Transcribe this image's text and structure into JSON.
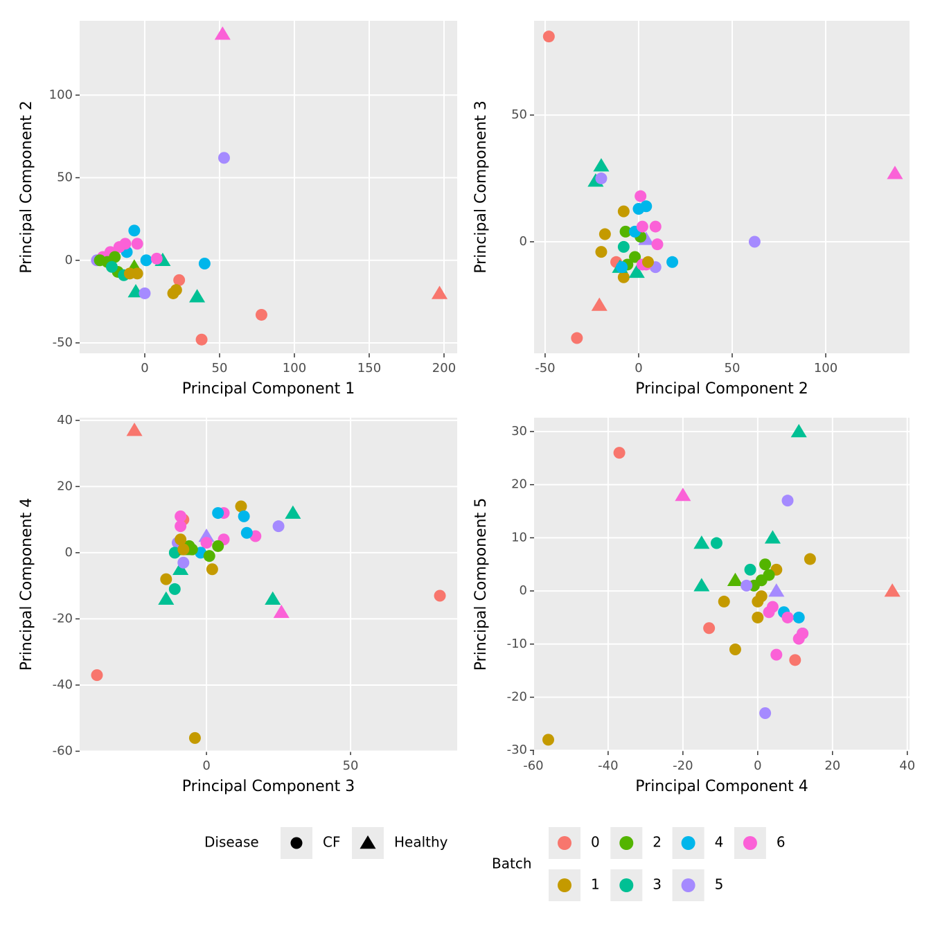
{
  "chart_data": [
    {
      "type": "scatter",
      "xlabel": "Principal Component 1",
      "ylabel": "Principal Component 2",
      "xlim": [
        -43.5,
        208.8
      ],
      "ylim": [
        -56.3,
        145
      ],
      "xticks": [
        0,
        50,
        100,
        150,
        200
      ],
      "yticks": [
        -50,
        0,
        50,
        100
      ],
      "grid": true,
      "x": [
        52,
        53,
        197,
        78,
        38,
        23,
        19,
        21,
        40,
        1,
        -7,
        -12,
        12,
        35,
        -6,
        -7,
        0,
        -5,
        -13,
        -17,
        -23,
        -28,
        8,
        -32,
        -30,
        -25,
        -20,
        -18,
        -22,
        -14,
        -10,
        -5
      ],
      "y": [
        137,
        62,
        -20,
        -33,
        -48,
        -12,
        -20,
        -18,
        -2,
        0,
        18,
        5,
        0,
        -22,
        -19,
        -4,
        -20,
        10,
        10,
        8,
        5,
        2,
        1,
        0,
        0,
        -1,
        2,
        -7,
        -4,
        -9,
        -8,
        -8
      ],
      "batch": [
        "6",
        "5",
        "0",
        "0",
        "0",
        "0",
        "1",
        "1",
        "4",
        "4",
        "4",
        "4",
        "3",
        "3",
        "3",
        "2",
        "5",
        "6",
        "6",
        "6",
        "6",
        "6",
        "6",
        "5",
        "2",
        "2",
        "2",
        "2",
        "3",
        "3",
        "1",
        "1"
      ],
      "disease": [
        "Healthy",
        "CF",
        "Healthy",
        "CF",
        "CF",
        "CF",
        "CF",
        "CF",
        "CF",
        "CF",
        "CF",
        "CF",
        "Healthy",
        "Healthy",
        "Healthy",
        "Healthy",
        "CF",
        "CF",
        "CF",
        "CF",
        "CF",
        "CF",
        "CF",
        "CF",
        "CF",
        "CF",
        "CF",
        "CF",
        "CF",
        "CF",
        "CF",
        "CF"
      ]
    },
    {
      "type": "scatter",
      "xlabel": "Principal Component 2",
      "ylabel": "Principal Component 3",
      "xlim": [
        -55.9,
        144.8
      ],
      "ylim": [
        -44,
        87.2
      ],
      "xticks": [
        -50,
        0,
        50,
        100
      ],
      "yticks": [
        0,
        50
      ],
      "grid": true,
      "x": [
        -48,
        -33,
        -12,
        -20,
        -23,
        -20,
        62,
        9,
        4,
        -21,
        137,
        -8,
        -18,
        -20,
        -8,
        -7,
        1,
        -2,
        -6,
        -8,
        -1,
        -10,
        0,
        4,
        -2,
        18,
        -9,
        1,
        2,
        9,
        10,
        4,
        2,
        5
      ],
      "y": [
        81,
        -38,
        -8,
        30,
        24,
        25,
        0,
        -10,
        1,
        -25,
        27,
        12,
        3,
        -4,
        -14,
        4,
        2,
        -6,
        -9,
        -2,
        -12,
        -10,
        13,
        14,
        4,
        -8,
        -10,
        18,
        6,
        6,
        -1,
        -9,
        -9,
        -8
      ],
      "batch": [
        "0",
        "0",
        "0",
        "3",
        "3",
        "5",
        "5",
        "5",
        "5",
        "0",
        "6",
        "1",
        "1",
        "1",
        "1",
        "2",
        "2",
        "2",
        "2",
        "3",
        "3",
        "3",
        "4",
        "4",
        "4",
        "4",
        "4",
        "6",
        "6",
        "6",
        "6",
        "6",
        "6",
        "1"
      ],
      "disease": [
        "CF",
        "CF",
        "CF",
        "Healthy",
        "Healthy",
        "CF",
        "CF",
        "CF",
        "Healthy",
        "Healthy",
        "Healthy",
        "CF",
        "CF",
        "CF",
        "CF",
        "CF",
        "CF",
        "CF",
        "CF",
        "CF",
        "Healthy",
        "Healthy",
        "CF",
        "CF",
        "CF",
        "CF",
        "CF",
        "CF",
        "CF",
        "CF",
        "CF",
        "CF",
        "CF",
        "CF"
      ]
    },
    {
      "type": "scatter",
      "xlabel": "Principal Component 3",
      "ylabel": "Principal Component 4",
      "xlim": [
        -44,
        87
      ],
      "ylim": [
        -59.9,
        40.8
      ],
      "xticks": [
        0,
        50
      ],
      "yticks": [
        -60,
        -40,
        -20,
        0,
        20,
        40
      ],
      "grid": true,
      "x": [
        -25,
        -38,
        81,
        -8,
        -4,
        -14,
        12,
        2,
        -14,
        -9,
        23,
        30,
        26,
        25,
        -10,
        -8,
        0,
        -9,
        -9,
        6,
        17,
        6,
        0,
        4,
        13,
        14,
        -2,
        -11,
        -11,
        -6,
        -5,
        1,
        4,
        -7,
        -9,
        -8
      ],
      "y": [
        37,
        -37,
        -13,
        10,
        -56,
        -8,
        14,
        -5,
        -14,
        -5,
        -14,
        12,
        -18,
        8,
        3,
        -3,
        5,
        11,
        8,
        12,
        5,
        4,
        3,
        12,
        11,
        6,
        0,
        0,
        -11,
        2,
        1,
        -1,
        2,
        1,
        4,
        1
      ],
      "batch": [
        "0",
        "0",
        "0",
        "0",
        "1",
        "1",
        "1",
        "1",
        "3",
        "3",
        "3",
        "3",
        "6",
        "5",
        "5",
        "5",
        "5",
        "6",
        "6",
        "6",
        "6",
        "6",
        "6",
        "4",
        "4",
        "4",
        "4",
        "3",
        "3",
        "2",
        "2",
        "2",
        "2",
        "2",
        "1",
        "1"
      ],
      "disease": [
        "Healthy",
        "CF",
        "CF",
        "CF",
        "CF",
        "CF",
        "CF",
        "CF",
        "Healthy",
        "Healthy",
        "Healthy",
        "Healthy",
        "Healthy",
        "CF",
        "CF",
        "CF",
        "Healthy",
        "CF",
        "CF",
        "CF",
        "CF",
        "CF",
        "CF",
        "CF",
        "CF",
        "CF",
        "CF",
        "CF",
        "CF",
        "CF",
        "CF",
        "CF",
        "CF",
        "Healthy",
        "CF",
        "CF"
      ]
    },
    {
      "type": "scatter",
      "xlabel": "Principal Component 4",
      "ylabel": "Principal Component 5",
      "xlim": [
        -59.8,
        40.6
      ],
      "ylim": [
        -30.1,
        32.6
      ],
      "xticks": [
        -60,
        -40,
        -20,
        0,
        20,
        40
      ],
      "yticks": [
        -30,
        -20,
        -10,
        0,
        10,
        20,
        30
      ],
      "grid": true,
      "x": [
        -37,
        -13,
        10,
        36,
        -56,
        -9,
        -6,
        14,
        5,
        1,
        0,
        0,
        -20,
        11,
        4,
        -15,
        -15,
        -11,
        -2,
        -6,
        2,
        3,
        1,
        -1,
        8,
        2,
        -3,
        5,
        7,
        11,
        12,
        4,
        3,
        8,
        11,
        12,
        5
      ],
      "y": [
        26,
        -7,
        -13,
        0,
        -28,
        -2,
        -11,
        6,
        4,
        -1,
        -5,
        -2,
        18,
        30,
        10,
        9,
        1,
        9,
        4,
        2,
        5,
        3,
        2,
        1,
        17,
        -23,
        1,
        0,
        -4,
        -5,
        -8,
        -3,
        -4,
        -5,
        -9,
        -8,
        -12
      ],
      "batch": [
        "0",
        "0",
        "0",
        "0",
        "1",
        "1",
        "1",
        "1",
        "1",
        "1",
        "1",
        "1",
        "6",
        "3",
        "3",
        "3",
        "3",
        "3",
        "3",
        "2",
        "2",
        "2",
        "2",
        "2",
        "5",
        "5",
        "5",
        "5",
        "4",
        "4",
        "4",
        "6",
        "6",
        "6",
        "6",
        "6",
        "6"
      ],
      "disease": [
        "CF",
        "CF",
        "CF",
        "Healthy",
        "CF",
        "CF",
        "CF",
        "CF",
        "CF",
        "CF",
        "CF",
        "CF",
        "Healthy",
        "Healthy",
        "Healthy",
        "Healthy",
        "Healthy",
        "CF",
        "CF",
        "Healthy",
        "CF",
        "CF",
        "CF",
        "CF",
        "CF",
        "CF",
        "CF",
        "Healthy",
        "CF",
        "CF",
        "CF",
        "CF",
        "CF",
        "CF",
        "CF",
        "CF",
        "CF"
      ]
    }
  ],
  "legend": {
    "disease_title": "Disease",
    "batch_title": "Batch",
    "diseases": [
      {
        "name": "CF",
        "shape": "circle"
      },
      {
        "name": "Healthy",
        "shape": "triangle"
      }
    ],
    "batches": [
      {
        "name": "0",
        "color": "#F8766D"
      },
      {
        "name": "1",
        "color": "#C49A00"
      },
      {
        "name": "2",
        "color": "#53B400"
      },
      {
        "name": "3",
        "color": "#00C094"
      },
      {
        "name": "4",
        "color": "#00B6EB"
      },
      {
        "name": "5",
        "color": "#A58AFF"
      },
      {
        "name": "6",
        "color": "#FB61D7"
      }
    ]
  }
}
